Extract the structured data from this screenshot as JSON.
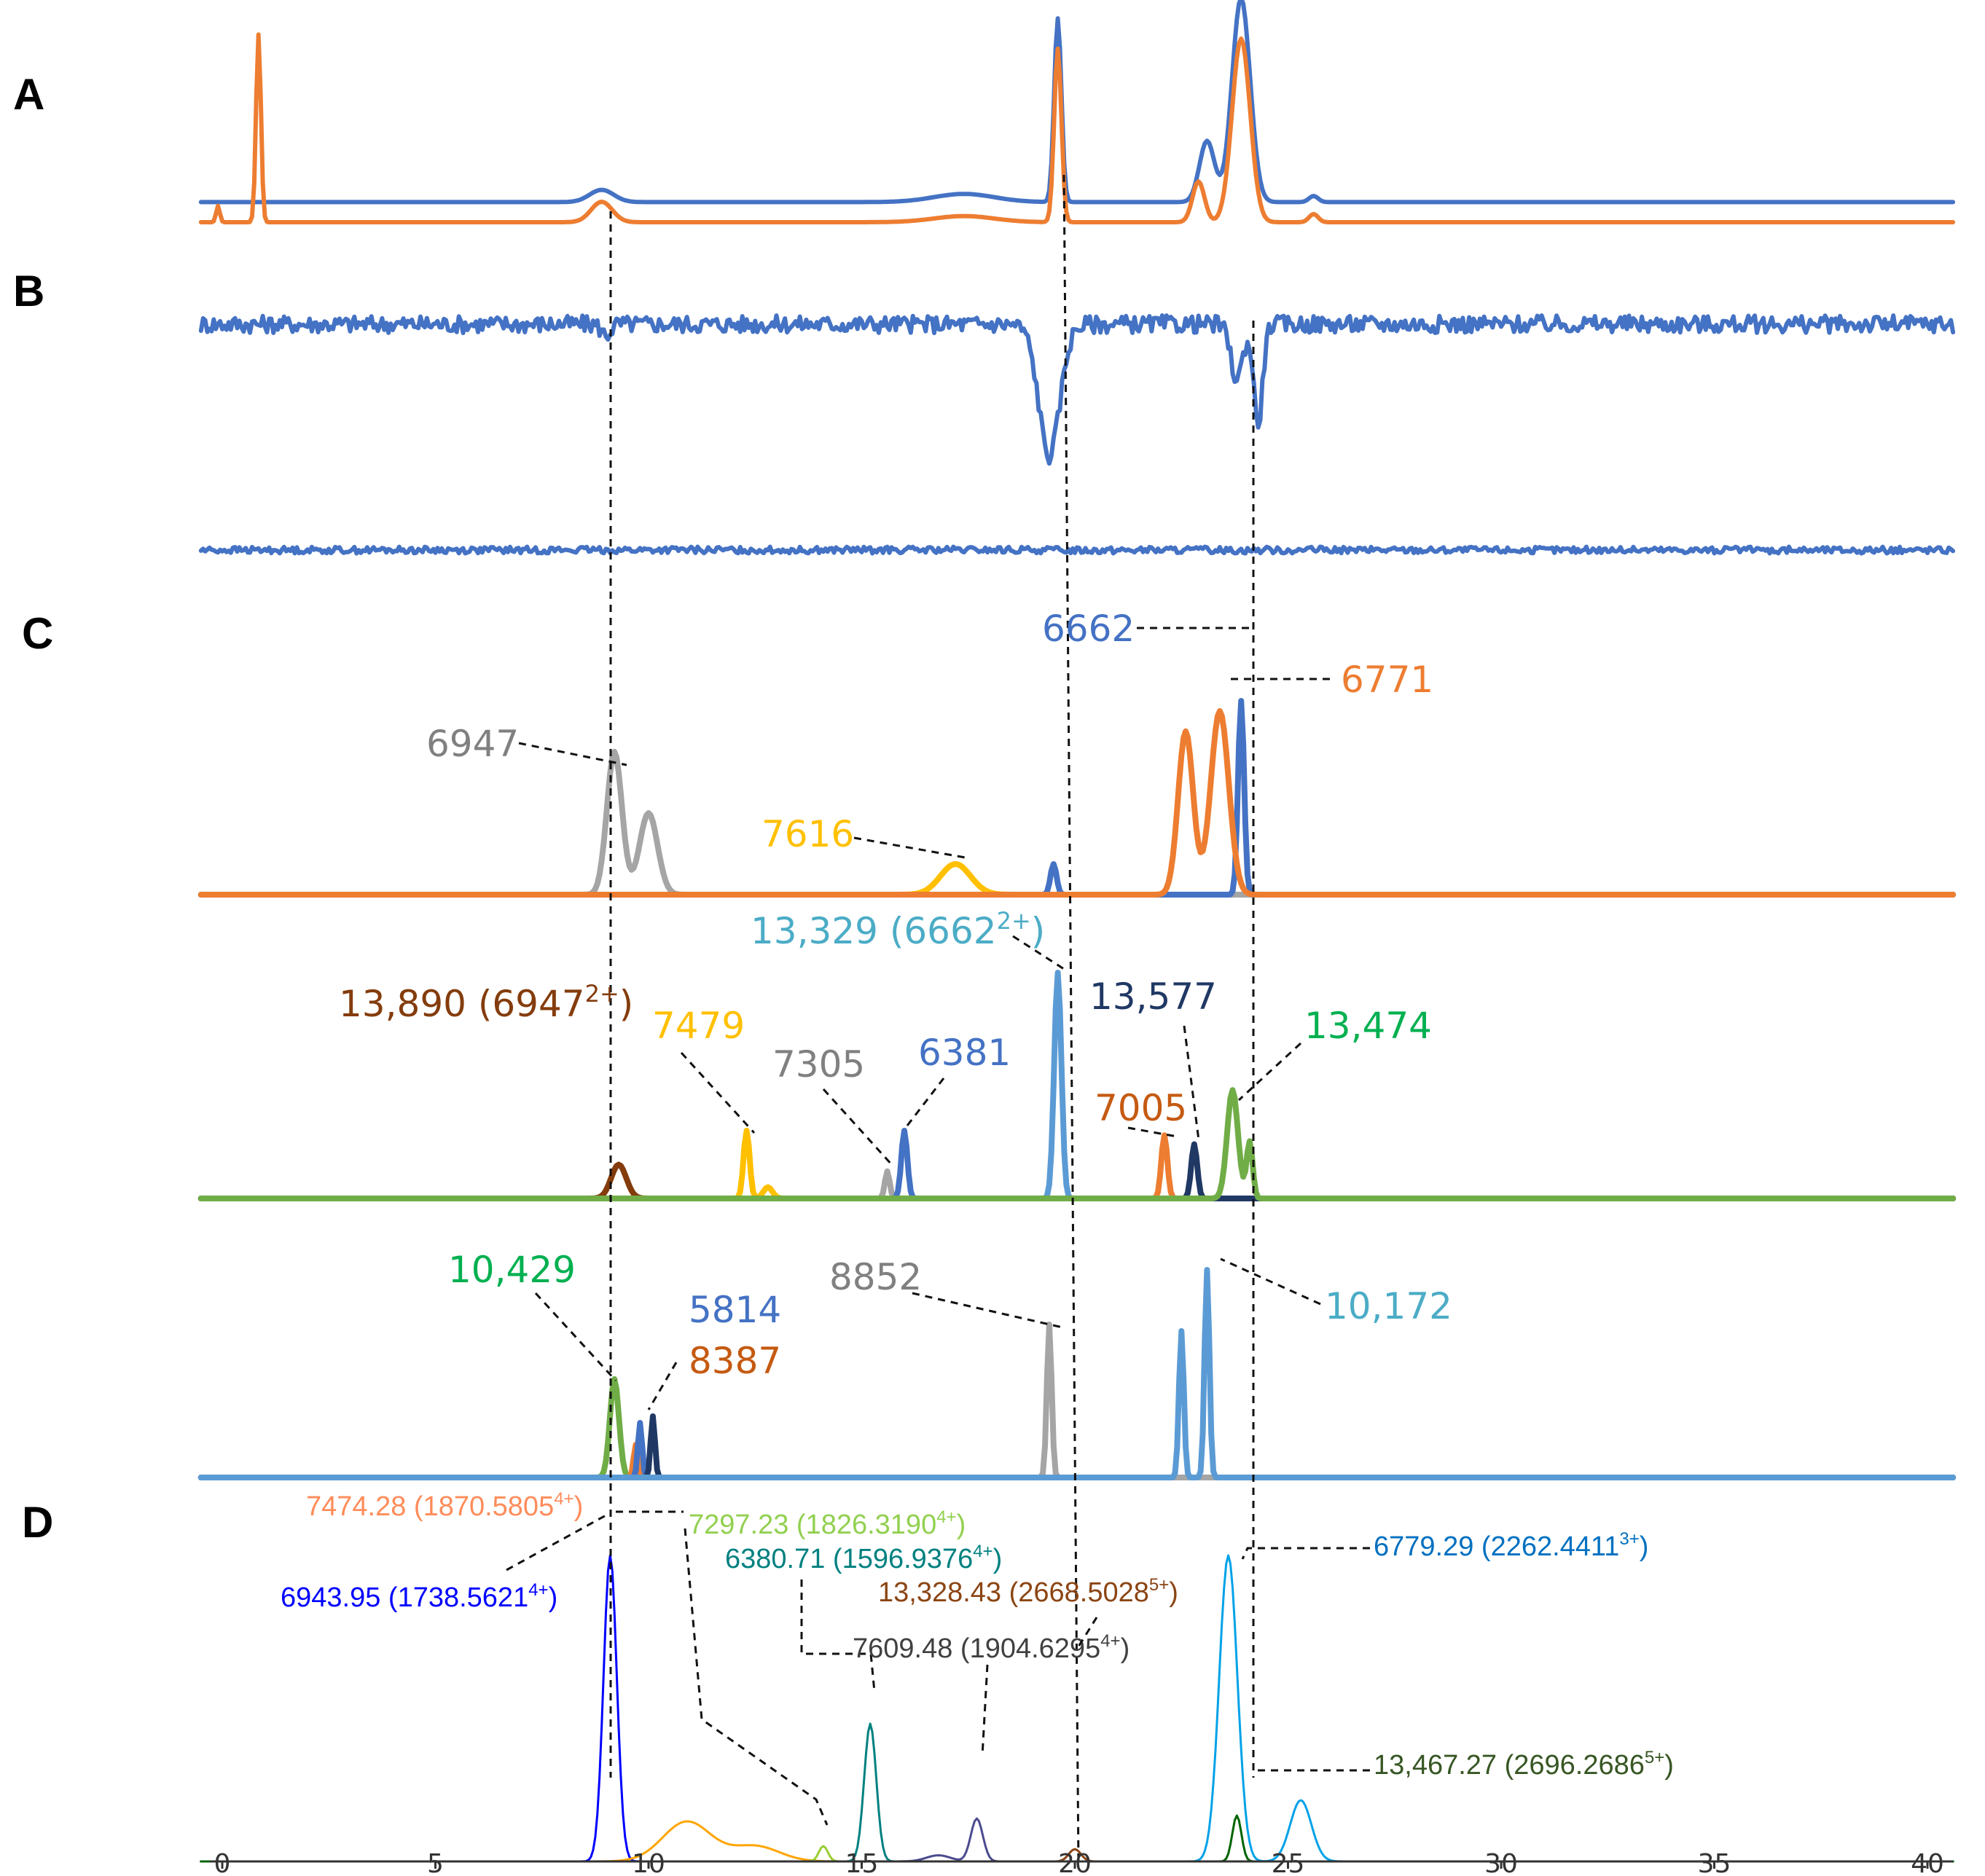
{
  "chart_data": {
    "type": "line",
    "x": {
      "ticks": [
        0,
        5,
        10,
        15,
        20,
        25,
        30,
        35,
        40
      ],
      "range": [
        -0.5,
        40.8
      ]
    },
    "panels": [
      {
        "label": "A",
        "series": [
          {
            "color": "#4472C4",
            "baseline": 0.02,
            "peaks": [
              [
                8.9,
                0.06,
                0.4
              ],
              [
                17.4,
                0.04,
                1.0
              ],
              [
                19.6,
                0.9,
                0.12
              ],
              [
                23.1,
                0.3,
                0.25
              ],
              [
                23.9,
                1.0,
                0.3
              ],
              [
                25.6,
                0.03,
                0.15
              ]
            ]
          },
          {
            "color": "#ED7D31",
            "baseline": 0.0,
            "peaks": [
              [
                -0.1,
                0.08,
                0.06
              ],
              [
                0.85,
                0.92,
                0.08
              ],
              [
                8.9,
                0.1,
                0.35
              ],
              [
                17.4,
                0.03,
                1.0
              ],
              [
                19.6,
                0.85,
                0.12
              ],
              [
                22.9,
                0.2,
                0.2
              ],
              [
                23.9,
                0.9,
                0.3
              ],
              [
                25.6,
                0.04,
                0.15
              ]
            ]
          }
        ]
      },
      {
        "label": "B",
        "series": [
          {
            "color": "#4472C4",
            "baseline": 0.0,
            "noise": 0.04,
            "peaks": [
              [
                9.0,
                -0.05,
                0.15
              ],
              [
                19.4,
                -0.6,
                0.35
              ],
              [
                23.8,
                -0.25,
                0.2
              ],
              [
                24.3,
                -0.45,
                0.15
              ]
            ]
          },
          {
            "color": "#4472C4",
            "baseline": 0.0,
            "noise": 0.015,
            "peaks": []
          }
        ]
      },
      {
        "label": "C",
        "series": [
          {
            "color": "#FFC000",
            "baseline": 0.0,
            "peaks": [
              [
                17.2,
                0.15,
                0.5
              ]
            ]
          },
          {
            "color": "#A5A5A5",
            "baseline": 0.0,
            "peaks": [
              [
                9.2,
                0.7,
                0.25
              ],
              [
                10.0,
                0.4,
                0.3
              ]
            ]
          },
          {
            "color": "#4472C4",
            "baseline": 0.0,
            "peaks": [
              [
                19.5,
                0.15,
                0.1
              ],
              [
                23.9,
                0.95,
                0.1
              ]
            ]
          },
          {
            "color": "#ED7D31",
            "baseline": 0.0,
            "peaks": [
              [
                22.6,
                0.8,
                0.25
              ],
              [
                23.4,
                0.9,
                0.3
              ]
            ]
          }
        ]
      },
      {
        "label": "",
        "series": [
          {
            "color": "#843C0C",
            "baseline": 0.0,
            "peaks": [
              [
                9.3,
                0.15,
                0.25
              ]
            ]
          },
          {
            "color": "#FFC000",
            "baseline": 0.0,
            "peaks": [
              [
                12.3,
                0.3,
                0.1
              ],
              [
                12.8,
                0.05,
                0.15
              ]
            ]
          },
          {
            "color": "#A5A5A5",
            "baseline": 0.0,
            "peaks": [
              [
                15.6,
                0.12,
                0.08
              ]
            ]
          },
          {
            "color": "#4472C4",
            "baseline": 0.0,
            "peaks": [
              [
                16.0,
                0.3,
                0.1
              ]
            ]
          },
          {
            "color": "#5B9BD5",
            "baseline": 0.0,
            "peaks": [
              [
                19.6,
                1.0,
                0.12
              ]
            ]
          },
          {
            "color": "#ED7D31",
            "baseline": 0.0,
            "peaks": [
              [
                22.1,
                0.28,
                0.1
              ]
            ]
          },
          {
            "color": "#203864",
            "baseline": 0.0,
            "peaks": [
              [
                22.8,
                0.24,
                0.1
              ]
            ]
          },
          {
            "color": "#70AD47",
            "baseline": 0.0,
            "peaks": [
              [
                23.7,
                0.48,
                0.18
              ],
              [
                24.1,
                0.25,
                0.1
              ]
            ]
          }
        ]
      },
      {
        "label": "",
        "series": [
          {
            "color": "#70AD47",
            "baseline": 0.0,
            "peaks": [
              [
                9.2,
                0.45,
                0.15
              ]
            ]
          },
          {
            "color": "#ED7D31",
            "baseline": 0.0,
            "peaks": [
              [
                9.7,
                0.15,
                0.07
              ]
            ]
          },
          {
            "color": "#4472C4",
            "baseline": 0.0,
            "peaks": [
              [
                9.8,
                0.25,
                0.07
              ]
            ]
          },
          {
            "color": "#203864",
            "baseline": 0.0,
            "peaks": [
              [
                10.1,
                0.28,
                0.07
              ]
            ]
          },
          {
            "color": "#A5A5A5",
            "baseline": 0.0,
            "peaks": [
              [
                19.4,
                0.7,
                0.08
              ]
            ]
          },
          {
            "color": "#5B9BD5",
            "baseline": 0.0,
            "peaks": [
              [
                22.5,
                0.67,
                0.08
              ],
              [
                23.1,
                0.95,
                0.08
              ]
            ]
          }
        ]
      },
      {
        "label": "D",
        "series": [
          {
            "color": "#0000FF",
            "baseline": 0.0,
            "peaks": [
              [
                9.1,
                1.0,
                0.22
              ]
            ]
          },
          {
            "color": "#FFA500",
            "baseline": 0.0,
            "peaks": [
              [
                10.9,
                0.13,
                0.8
              ],
              [
                12.5,
                0.05,
                0.8
              ]
            ]
          },
          {
            "color": "#9ACD32",
            "baseline": 0.0,
            "peaks": [
              [
                14.1,
                0.05,
                0.15
              ]
            ]
          },
          {
            "color": "#008080",
            "baseline": 0.0,
            "peaks": [
              [
                15.2,
                0.45,
                0.2
              ]
            ]
          },
          {
            "color": "#4B4B8F",
            "baseline": 0.0,
            "peaks": [
              [
                17.7,
                0.14,
                0.2
              ],
              [
                16.8,
                0.02,
                0.4
              ]
            ]
          },
          {
            "color": "#8B4513",
            "baseline": 0.0,
            "peaks": [
              [
                20.0,
                0.04,
                0.2
              ]
            ]
          },
          {
            "color": "#00A2E8",
            "baseline": 0.0,
            "peaks": [
              [
                23.6,
                1.0,
                0.3
              ],
              [
                25.3,
                0.2,
                0.35
              ]
            ]
          },
          {
            "color": "#006400",
            "baseline": 0.0,
            "peaks": [
              [
                23.8,
                0.15,
                0.15
              ]
            ]
          }
        ]
      }
    ]
  },
  "annotations": {
    "c1": [
      "6662",
      "6771",
      "6947",
      "7616"
    ],
    "c2": [
      "13,329 (6662",
      "2+",
      ")",
      "13,890 (6947",
      "2+",
      ")",
      "7479",
      "7305",
      "6381",
      "13,577",
      "13,474",
      "7005"
    ],
    "c3": [
      "10,429",
      "5814",
      "8387",
      "8852",
      "10,172"
    ],
    "d": [
      "7474.28 (1870.5805",
      "4+",
      ")",
      "7297.23 (1826.3190",
      "4+",
      ")",
      "6380.71 (1596.9376",
      "4+",
      ")",
      "13,328.43 (2668.5028",
      "5+",
      ")",
      "6779.29 (2262.4411",
      "3+",
      ")",
      "6943.95 (1738.5621",
      "4+",
      ")",
      "7609.48 (1904.6295",
      "4+",
      ")",
      "13,467.27 (2696.2686",
      "5+",
      ")"
    ]
  },
  "colors": {
    "blue": "#4472C4",
    "orange": "#ED7D31",
    "gray": "#A5A5A5",
    "gold": "#FFC000",
    "brown": "#843C0C",
    "navy": "#203864",
    "green": "#70AD47",
    "lightblue": "#5B9BD5",
    "annGreen": "#00B050",
    "annBlue": "#4472C4",
    "annLight": "#4BACC6"
  }
}
